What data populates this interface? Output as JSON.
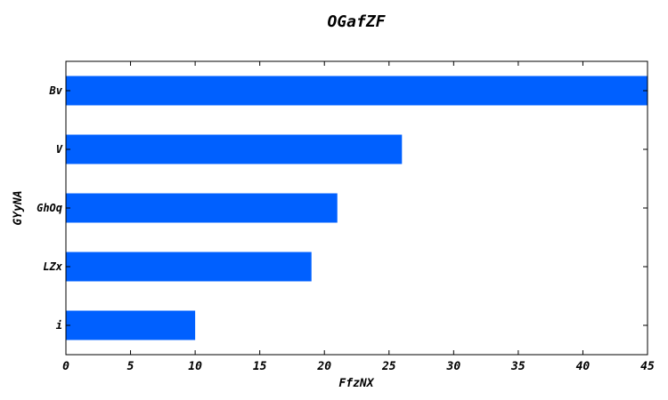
{
  "chart_data": {
    "type": "bar",
    "orientation": "horizontal",
    "title": "OGafZF",
    "xlabel": "FfzNX",
    "ylabel": "GYyNA",
    "categories": [
      "Bv",
      "V",
      "GhOq",
      "LZx",
      "i"
    ],
    "values": [
      45,
      26,
      21,
      19,
      10
    ],
    "xlim": [
      0,
      45
    ],
    "xticks": [
      0,
      5,
      10,
      15,
      20,
      25,
      30,
      35,
      40,
      45
    ],
    "bar_color": "#0060ff",
    "grid": false,
    "legend": "none"
  }
}
